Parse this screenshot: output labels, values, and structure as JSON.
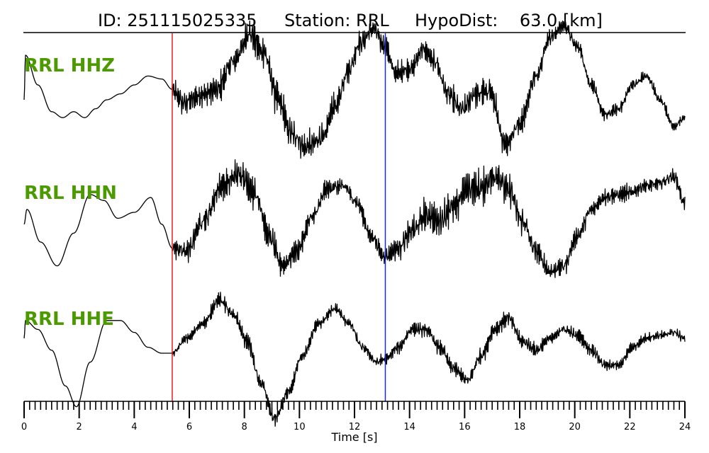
{
  "header": {
    "id_text": "ID: 251115025335",
    "station_text": "Station: RRL",
    "hypodist_text": "HypoDist:    63.0 [km]"
  },
  "colors": {
    "trace": "#000000",
    "label": "#4a9a00",
    "p_pick": "#e8201c",
    "s_pick": "#1c2bd0",
    "axis": "#000000"
  },
  "chart_data": {
    "type": "line",
    "title": "ID: 251115025335   Station: RRL   HypoDist:    63.0 [km]",
    "xlabel": "Time [s]",
    "ylabel": "",
    "xlim": [
      0,
      24
    ],
    "x_tick_labels": [
      "0",
      "2",
      "4",
      "6",
      "8",
      "10",
      "12",
      "14",
      "16",
      "18",
      "20",
      "22",
      "24"
    ],
    "x_ticks": [
      0,
      2,
      4,
      6,
      8,
      10,
      12,
      14,
      16,
      18,
      20,
      22,
      24
    ],
    "minor_tick_step": 0.2,
    "grid": false,
    "picks": [
      {
        "name": "P",
        "x": 5.38,
        "color": "#e8201c"
      },
      {
        "name": "S",
        "x": 13.12,
        "color": "#1c2bd0"
      }
    ],
    "series": [
      {
        "name": "RRL HHZ",
        "noise_start": 5.38,
        "noise_amp": [
          [
            5.38,
            0.55
          ],
          [
            9.0,
            0.75
          ],
          [
            12.0,
            0.5
          ],
          [
            14.5,
            0.45
          ],
          [
            17.0,
            0.6
          ],
          [
            20.0,
            0.3
          ],
          [
            24.0,
            0.2
          ]
        ],
        "x": [
          0,
          0.05,
          0.5,
          1.0,
          1.4,
          1.8,
          2.2,
          2.6,
          3.0,
          3.5,
          4.0,
          4.5,
          5.0,
          5.38,
          5.8,
          6.3,
          7.0,
          7.6,
          8.2,
          8.7,
          9.2,
          9.7,
          10.2,
          10.8,
          11.3,
          11.8,
          12.2,
          12.7,
          13.1,
          13.5,
          14.0,
          14.5,
          14.9,
          15.4,
          15.9,
          16.4,
          16.9,
          17.5,
          18.0,
          18.6,
          19.1,
          19.6,
          20.1,
          20.6,
          21.1,
          21.6,
          22.1,
          22.6,
          23.1,
          23.6,
          24.0
        ],
        "y": [
          -0.5,
          1.0,
          0.0,
          -0.9,
          -1.1,
          -0.9,
          -1.1,
          -0.8,
          -0.5,
          -0.3,
          0.0,
          0.3,
          0.2,
          -0.15,
          -0.6,
          -0.4,
          -0.15,
          0.8,
          1.7,
          1.1,
          -0.4,
          -1.6,
          -2.1,
          -1.8,
          -0.7,
          0.5,
          1.4,
          1.9,
          1.3,
          0.4,
          0.5,
          1.2,
          0.8,
          -0.3,
          -0.8,
          -0.3,
          -0.2,
          -2.0,
          -1.3,
          0.3,
          1.6,
          2.0,
          1.3,
          0.0,
          -1.0,
          -0.8,
          0.0,
          0.3,
          -0.5,
          -1.4,
          -1.1
        ]
      },
      {
        "name": "RRL HHN",
        "noise_start": 5.38,
        "noise_amp": [
          [
            5.38,
            0.45
          ],
          [
            8.0,
            0.65
          ],
          [
            10.0,
            0.45
          ],
          [
            13.0,
            0.35
          ],
          [
            14.5,
            0.7
          ],
          [
            17.5,
            0.8
          ],
          [
            19.0,
            0.4
          ],
          [
            24.0,
            0.3
          ]
        ],
        "x": [
          0,
          0.1,
          0.6,
          1.2,
          1.8,
          2.4,
          2.9,
          3.4,
          4.0,
          4.6,
          5.0,
          5.38,
          5.9,
          6.5,
          7.2,
          7.8,
          8.4,
          8.9,
          9.4,
          9.9,
          10.5,
          11.0,
          11.6,
          12.1,
          12.6,
          13.1,
          13.6,
          14.1,
          14.6,
          15.1,
          15.6,
          16.1,
          16.6,
          17.1,
          17.6,
          18.1,
          18.6,
          19.1,
          19.6,
          20.1,
          20.6,
          21.1,
          21.6,
          22.1,
          22.6,
          23.1,
          23.6,
          24.0
        ],
        "y": [
          -0.4,
          0.1,
          -1.0,
          -1.8,
          -0.7,
          0.6,
          0.4,
          -0.2,
          0.0,
          0.5,
          -0.4,
          -1.2,
          -1.3,
          -0.3,
          0.9,
          1.3,
          0.6,
          -0.8,
          -1.8,
          -1.3,
          -0.1,
          0.8,
          0.9,
          0.3,
          -0.8,
          -1.5,
          -1.2,
          -0.6,
          -0.1,
          -0.3,
          0.2,
          0.8,
          0.8,
          1.2,
          0.8,
          -0.3,
          -1.3,
          -2.0,
          -1.8,
          -0.8,
          0.1,
          0.5,
          0.6,
          0.7,
          0.9,
          1.0,
          1.2,
          0.3
        ]
      },
      {
        "name": "RRL HHE",
        "noise_start": 5.38,
        "noise_amp": [
          [
            5.38,
            0.12
          ],
          [
            7.0,
            0.3
          ],
          [
            9.0,
            0.3
          ],
          [
            12.0,
            0.2
          ],
          [
            15.0,
            0.3
          ],
          [
            17.5,
            0.35
          ],
          [
            20.0,
            0.25
          ],
          [
            24.0,
            0.2
          ]
        ],
        "x": [
          0,
          0.05,
          0.5,
          1.0,
          1.5,
          1.9,
          2.4,
          3.0,
          3.5,
          4.0,
          4.5,
          5.0,
          5.38,
          5.9,
          6.5,
          7.1,
          7.6,
          8.1,
          8.6,
          9.1,
          9.6,
          10.1,
          10.7,
          11.3,
          11.8,
          12.3,
          12.8,
          13.1,
          13.6,
          14.1,
          14.6,
          15.1,
          15.6,
          16.1,
          16.6,
          17.1,
          17.6,
          18.1,
          18.6,
          19.1,
          19.6,
          20.1,
          20.6,
          21.1,
          21.6,
          22.1,
          22.6,
          23.1,
          23.6,
          24.0
        ],
        "y": [
          0.0,
          0.6,
          0.3,
          -0.4,
          -1.6,
          -2.3,
          -0.8,
          0.6,
          0.6,
          0.2,
          -0.3,
          -0.5,
          -0.5,
          0.0,
          0.5,
          1.3,
          0.8,
          -0.1,
          -1.5,
          -2.7,
          -1.8,
          -0.6,
          0.5,
          1.0,
          0.5,
          -0.3,
          -0.8,
          -0.7,
          -0.3,
          0.3,
          0.3,
          -0.3,
          -1.0,
          -1.4,
          -0.6,
          0.3,
          0.7,
          -0.1,
          -0.4,
          0.0,
          0.3,
          0.1,
          -0.4,
          -0.9,
          -0.9,
          -0.3,
          0.0,
          0.1,
          0.2,
          0.0
        ]
      }
    ]
  }
}
